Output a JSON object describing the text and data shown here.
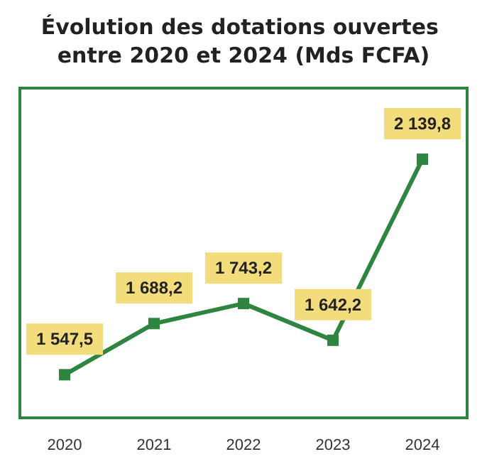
{
  "chart_data": {
    "type": "line",
    "title": "Évolution des dotations ouvertes entre 2020 et 2024 (Mds FCFA)",
    "categories": [
      "2020",
      "2021",
      "2022",
      "2023",
      "2024"
    ],
    "series": [
      {
        "color": "#2e8540",
        "values": [
          1547.5,
          1688.2,
          1743.2,
          1642.2,
          2139.8
        ],
        "value_labels": [
          "1 547,5",
          "1 688,2",
          "1 743,2",
          "1 642,2",
          "2 139,8"
        ]
      }
    ],
    "marker": "square"
  }
}
